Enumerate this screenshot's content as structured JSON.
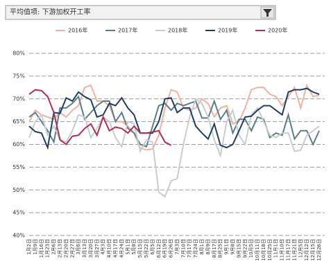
{
  "chart_data": {
    "type": "line",
    "title": "平均值项: 下游加权开工率",
    "categories": [
      "1月2日",
      "1月9日",
      "1月16日",
      "1月23日",
      "2月6日",
      "2月13日",
      "2月20日",
      "2月27日",
      "3月6日",
      "3月13日",
      "3月20日",
      "3月27日",
      "4月3日",
      "4月10日",
      "4月17日",
      "4月24日",
      "5月1日",
      "5月8日",
      "5月15日",
      "5月22日",
      "6月5日",
      "6月12日",
      "6月19日",
      "6月26日",
      "7月3日",
      "7月10日",
      "7月17日",
      "7月24日",
      "8月1日",
      "8月9日",
      "8月17日",
      "8月25日",
      "9月1日",
      "9月8日",
      "9月15日",
      "9月22日",
      "10月5日",
      "10月11日",
      "10月18日",
      "10月25日",
      "11月1日",
      "11月10日",
      "11月17日",
      "11月21日",
      "12月5日",
      "12月12日",
      "12月15日",
      "12月26日"
    ],
    "ylim": [
      40,
      80
    ],
    "yticks": [
      {
        "value": 40,
        "label": "40%"
      },
      {
        "value": 45,
        "label": "45%"
      },
      {
        "value": 50,
        "label": "50%"
      },
      {
        "value": 55,
        "label": "55%"
      },
      {
        "value": 60,
        "label": "60%"
      },
      {
        "value": 65,
        "label": "65%"
      },
      {
        "value": 70,
        "label": "70%"
      },
      {
        "value": 75,
        "label": "75%"
      },
      {
        "value": 80,
        "label": "80%"
      }
    ],
    "grid": true,
    "series": [
      {
        "name": "2016年",
        "color": "#f2b19c",
        "values": [
          65,
          67.5,
          66.5,
          66,
          65.5,
          67,
          66,
          67.5,
          68.5,
          72.5,
          73,
          69.5,
          69.5,
          68.5,
          65,
          65,
          64,
          62.5,
          59.2,
          58.8,
          59,
          62,
          68,
          72,
          71.5,
          68,
          67.5,
          68,
          70,
          69,
          66,
          68,
          68.5,
          64.5,
          65,
          68,
          72,
          72.5,
          72.5,
          71,
          70.5,
          68.5,
          70.5,
          72.5,
          68,
          73,
          70.5,
          70.8
        ]
      },
      {
        "name": "2017年",
        "color": "#5a7d88",
        "values": [
          66,
          67,
          65,
          63,
          60.5,
          68,
          68,
          69,
          70.5,
          65.5,
          67,
          68.5,
          69.5,
          69.5,
          65,
          67,
          63.5,
          62.5,
          60,
          59.5,
          64,
          68.5,
          69,
          67.5,
          69,
          68.5,
          69,
          69.5,
          65.8,
          65.8,
          69.5,
          65.5,
          67.5,
          62.5,
          65.5,
          65.5,
          63,
          66,
          65.5,
          61.5,
          62.5,
          62,
          66.5,
          61.2,
          63,
          63,
          60,
          63
        ]
      },
      {
        "name": "2018年",
        "color": "#c6cdd1",
        "values": [
          61.5,
          65,
          66.5,
          62,
          64,
          61,
          60.5,
          63,
          66.5,
          66,
          61.5,
          63.5,
          66,
          65,
          61.5,
          59.5,
          65,
          64.5,
          58.5,
          61,
          60.5,
          49.5,
          48.5,
          52,
          52.5,
          60,
          66,
          70,
          69,
          66,
          61,
          57.5,
          65,
          67.5,
          62,
          60,
          66.5,
          68,
          65,
          62,
          61.5,
          62.5,
          62.5,
          58.5,
          58.7,
          62,
          63,
          64
        ]
      },
      {
        "name": "2019年",
        "color": "#1e3d64",
        "values": [
          64,
          62.8,
          62.5,
          59.3,
          67,
          66.8,
          70.2,
          69.5,
          71.5,
          70.5,
          69.8,
          66,
          66.5,
          69,
          68.5,
          70.2,
          68,
          66.5,
          62.5,
          62.5,
          62.5,
          65,
          70,
          70.2,
          67,
          68,
          68,
          64,
          62.5,
          61.2,
          64.5,
          59.8,
          59.3,
          60,
          63,
          66,
          66.2,
          67.5,
          68.5,
          68.5,
          67.5,
          66.5,
          71.5,
          72,
          72,
          72.3,
          71.5,
          71
        ]
      },
      {
        "name": "2020年",
        "color": "#b0304f",
        "values": [
          71,
          72,
          71.8,
          70.5,
          67,
          61,
          60,
          61.8,
          62,
          63.5,
          64.5,
          62,
          66,
          63,
          63.8,
          63.5,
          62.5,
          64,
          62.5,
          62.5,
          62.7,
          63,
          60.5,
          59.8,
          null,
          null,
          null,
          null,
          null,
          null,
          null,
          null,
          null,
          null,
          null,
          null,
          null,
          null,
          null,
          null,
          null,
          null,
          null,
          null,
          null,
          null,
          null,
          null
        ]
      }
    ]
  }
}
